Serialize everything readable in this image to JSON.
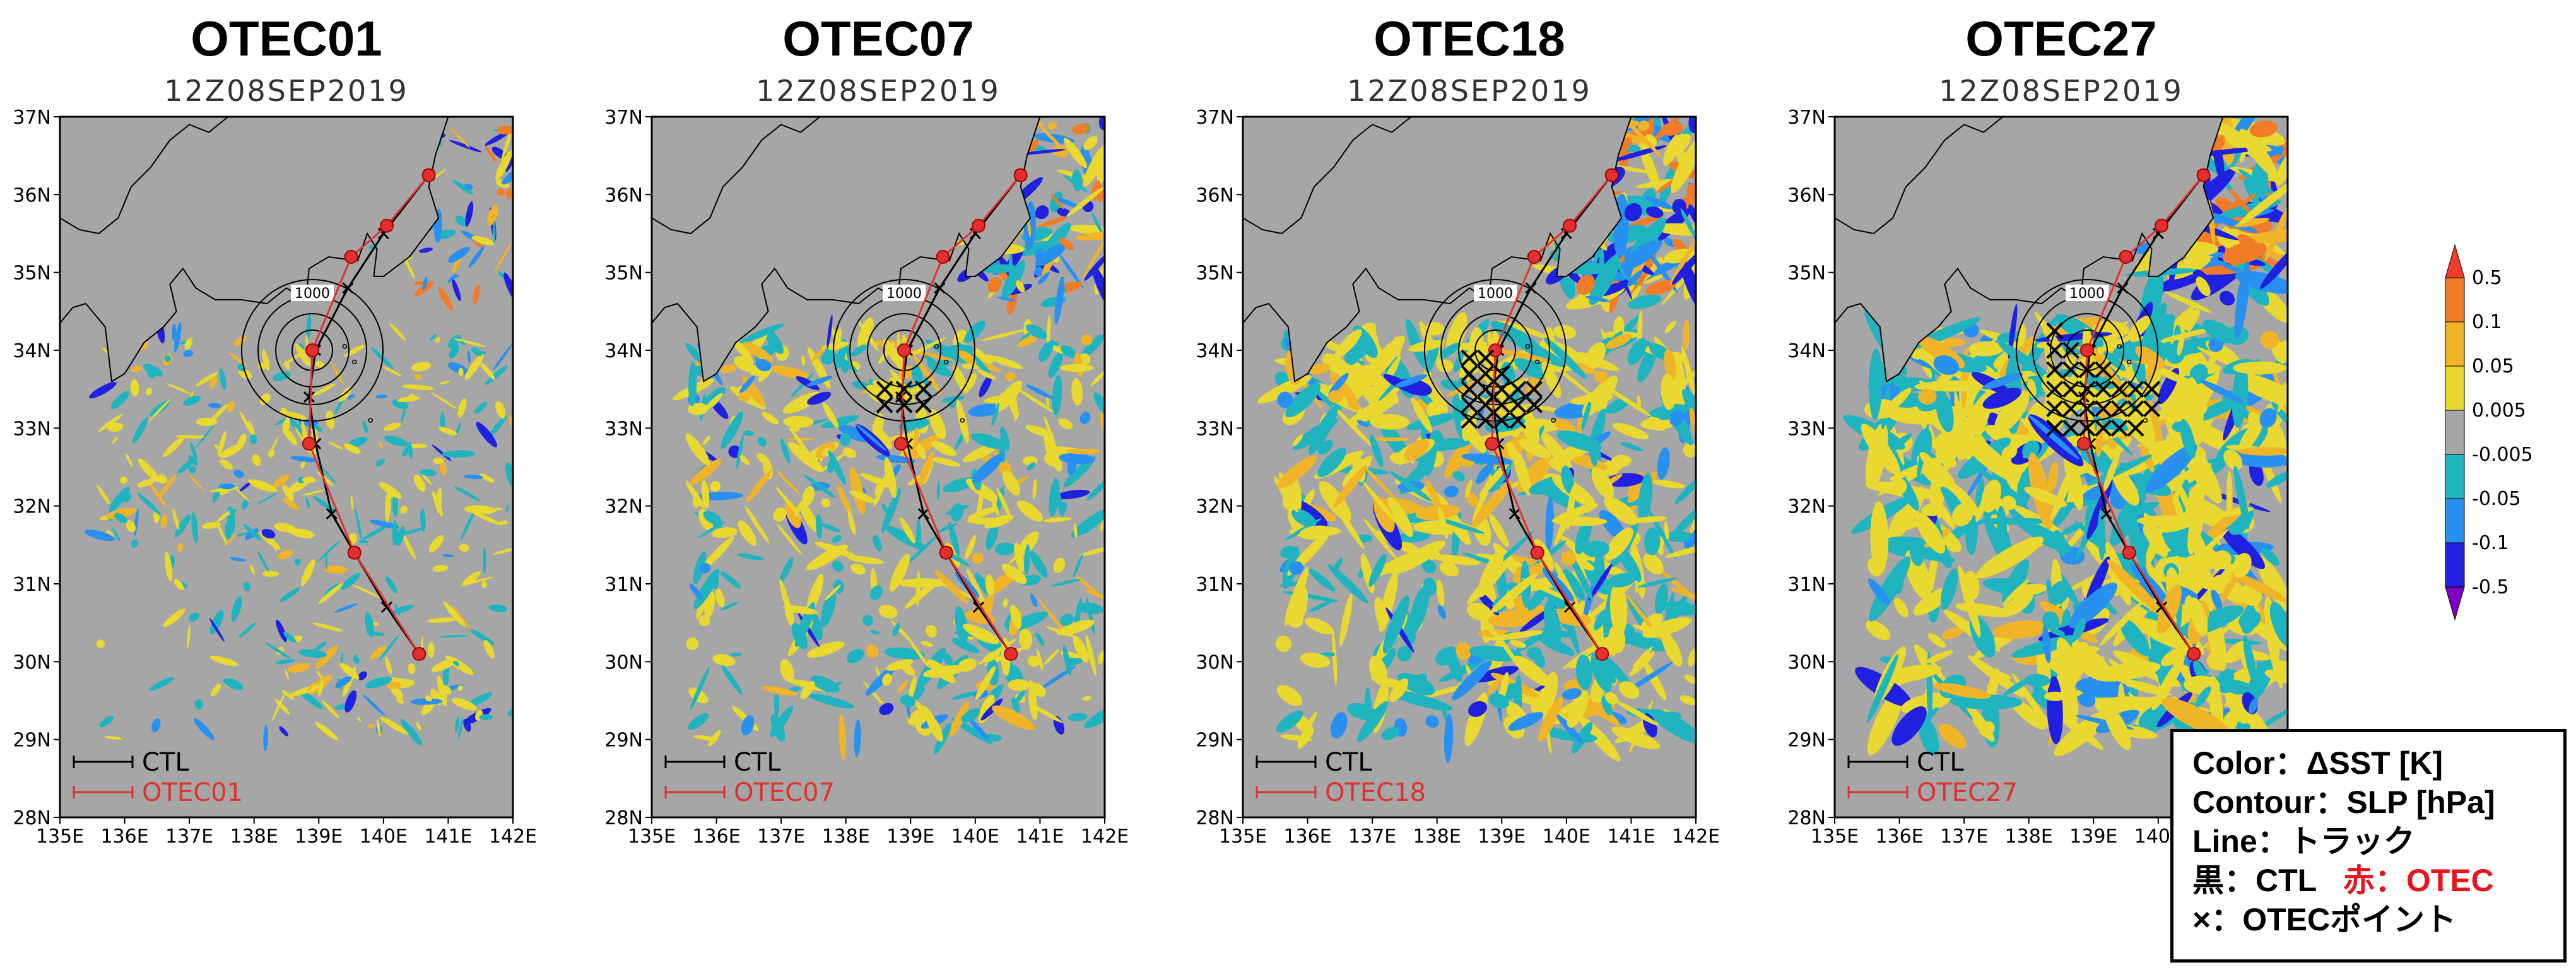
{
  "chart_data": [
    {
      "type": "map",
      "title": "OTEC01",
      "subtitle": "12Z08SEP2019",
      "legend": {
        "ctl": "CTL",
        "otec": "OTEC01"
      },
      "otec_points": [],
      "xlim": [
        135,
        142
      ],
      "ylim": [
        28,
        37
      ]
    },
    {
      "type": "map",
      "title": "OTEC07",
      "subtitle": "12Z08SEP2019",
      "legend": {
        "ctl": "CTL",
        "otec": "OTEC07"
      },
      "otec_points": [
        [
          138.6,
          33.5
        ],
        [
          138.9,
          33.5
        ],
        [
          139.2,
          33.5
        ],
        [
          138.6,
          33.3
        ],
        [
          138.9,
          33.3
        ],
        [
          139.2,
          33.3
        ]
      ],
      "xlim": [
        135,
        142
      ],
      "ylim": [
        28,
        37
      ]
    },
    {
      "type": "map",
      "title": "OTEC18",
      "subtitle": "12Z08SEP2019",
      "legend": {
        "ctl": "CTL",
        "otec": "OTEC18"
      },
      "otec_points": [
        [
          138.5,
          33.9
        ],
        [
          138.5,
          33.7
        ],
        [
          138.5,
          33.5
        ],
        [
          138.5,
          33.3
        ],
        [
          138.5,
          33.1
        ],
        [
          138.75,
          33.9
        ],
        [
          138.75,
          33.7
        ],
        [
          138.75,
          33.5
        ],
        [
          138.75,
          33.3
        ],
        [
          138.75,
          33.1
        ],
        [
          139.0,
          33.7
        ],
        [
          139.0,
          33.5
        ],
        [
          139.0,
          33.3
        ],
        [
          139.0,
          33.1
        ],
        [
          139.25,
          33.5
        ],
        [
          139.25,
          33.3
        ],
        [
          139.25,
          33.1
        ],
        [
          139.5,
          33.5
        ],
        [
          139.5,
          33.3
        ]
      ],
      "xlim": [
        135,
        142
      ],
      "ylim": [
        28,
        37
      ]
    },
    {
      "type": "map",
      "title": "OTEC27",
      "subtitle": "12Z08SEP2019",
      "legend": {
        "ctl": "CTL",
        "otec": "OTEC27"
      },
      "otec_points": [
        [
          138.4,
          34.25
        ],
        [
          138.4,
          34.0
        ],
        [
          138.4,
          33.75
        ],
        [
          138.4,
          33.5
        ],
        [
          138.4,
          33.25
        ],
        [
          138.4,
          33.0
        ],
        [
          138.65,
          34.0
        ],
        [
          138.65,
          33.75
        ],
        [
          138.65,
          33.5
        ],
        [
          138.65,
          33.25
        ],
        [
          138.65,
          33.0
        ],
        [
          138.9,
          33.75
        ],
        [
          138.9,
          33.5
        ],
        [
          138.9,
          33.25
        ],
        [
          138.9,
          33.0
        ],
        [
          139.15,
          33.75
        ],
        [
          139.15,
          33.5
        ],
        [
          139.15,
          33.25
        ],
        [
          139.15,
          33.0
        ],
        [
          139.4,
          33.5
        ],
        [
          139.4,
          33.25
        ],
        [
          139.4,
          33.0
        ],
        [
          139.65,
          33.5
        ],
        [
          139.65,
          33.25
        ],
        [
          139.65,
          33.0
        ],
        [
          139.9,
          33.5
        ],
        [
          139.9,
          33.25
        ]
      ],
      "xlim": [
        135,
        142
      ],
      "ylim": [
        28,
        37
      ]
    }
  ],
  "axes": {
    "x_ticks": [
      "135E",
      "136E",
      "137E",
      "138E",
      "139E",
      "140E",
      "141E",
      "142E"
    ],
    "x_values": [
      135,
      136,
      137,
      138,
      139,
      140,
      141,
      142
    ],
    "y_ticks": [
      "28N",
      "29N",
      "30N",
      "31N",
      "32N",
      "33N",
      "34N",
      "35N",
      "36N",
      "37N"
    ],
    "y_values": [
      28,
      29,
      30,
      31,
      32,
      33,
      34,
      35,
      36,
      37
    ]
  },
  "ctl_track": [
    [
      140.7,
      36.25
    ],
    [
      140.0,
      35.5
    ],
    [
      139.45,
      34.8
    ],
    [
      138.95,
      34.0
    ],
    [
      138.85,
      33.4
    ],
    [
      138.95,
      32.8
    ],
    [
      139.2,
      31.9
    ],
    [
      139.55,
      31.4
    ],
    [
      140.05,
      30.7
    ],
    [
      140.55,
      30.1
    ]
  ],
  "otec_track": [
    [
      140.7,
      36.25
    ],
    [
      140.05,
      35.6
    ],
    [
      139.5,
      35.2
    ],
    [
      138.9,
      34.0
    ],
    [
      138.85,
      32.8
    ],
    [
      139.55,
      31.4
    ],
    [
      140.55,
      30.1
    ]
  ],
  "contour_label": "1000",
  "contour_center": [
    138.9,
    34.0
  ],
  "colorbar": {
    "labels": [
      "0.5",
      "0.1",
      "0.05",
      "0.005",
      "-0.005",
      "-0.05",
      "-0.1",
      "-0.5"
    ],
    "colors": [
      "#f03c28",
      "#f07c28",
      "#f0b428",
      "#e8d830",
      "#a6a6a6",
      "#20b4c0",
      "#2890f0",
      "#2020e0",
      "#8000c0"
    ]
  },
  "colors": {
    "land": "#a6a6a6",
    "sea_missing": "#a6a6a6",
    "ctl": "#000000",
    "otec": "#e03030"
  },
  "note": {
    "line1": "Color：ΔSST [K]",
    "line2": "Contour：SLP [hPa]",
    "line3": "Line：トラック",
    "line4a": "黒：CTL",
    "line4b": "赤：OTEC",
    "line5": "×：OTECポイント"
  }
}
